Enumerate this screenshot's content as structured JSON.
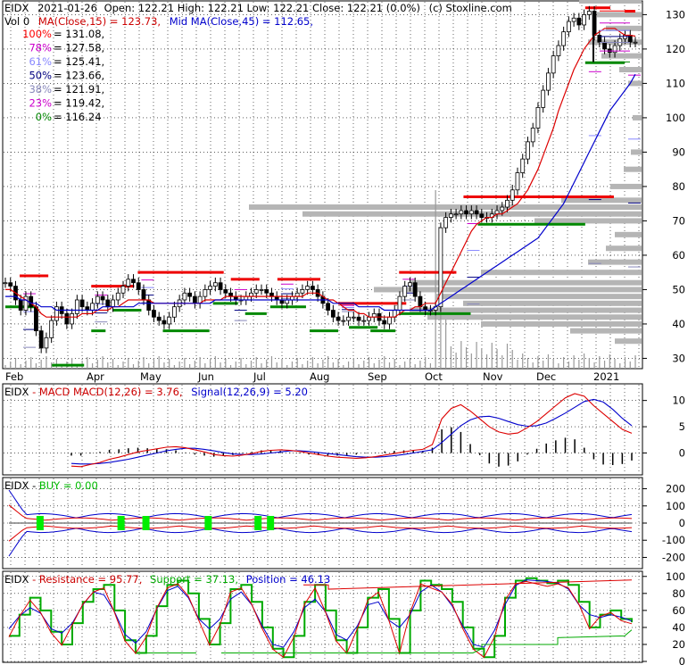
{
  "chart_data": [
    {
      "type": "candlestick",
      "header": {
        "ticker": "EIDX",
        "date": "2021-01-26",
        "ohlc_text": "Open: 122.21  High: 122.21  Low: 122.21  Close: 122.21 (0.0%)",
        "copyright": "(c) Stoxline.com",
        "vol_text": "Vol 0",
        "ma_text": "MA(Close,15) = 123.73,",
        "mid_text": "Mid MA(Close,45) = 112.65,"
      },
      "fib_levels": [
        {
          "label": "100% = 131.08,",
          "color": "#ff0000",
          "value": 131.08
        },
        {
          "label": "78% = 127.58,",
          "color": "#cc00cc",
          "value": 127.58
        },
        {
          "label": "61% = 125.41,",
          "color": "#8888ff",
          "value": 125.41
        },
        {
          "label": "50% = 123.66,",
          "color": "#000080",
          "value": 123.66
        },
        {
          "label": "38% = 121.91,",
          "color": "#8888bb",
          "value": 121.91
        },
        {
          "label": "23% = 119.42,",
          "color": "#cc00cc",
          "value": 119.42
        },
        {
          "label": "0% = 116.24",
          "color": "#008800",
          "value": 116.24
        }
      ],
      "month_labels": [
        "Feb",
        "Apr",
        "May",
        "Jun",
        "Jul",
        "Aug",
        "Sep",
        "Oct",
        "Nov",
        "Dec",
        "2021"
      ],
      "y_ticks": [
        30,
        40,
        50,
        60,
        70,
        80,
        90,
        100,
        110,
        120,
        130
      ],
      "ylim": [
        27,
        134
      ],
      "close_series": [
        52,
        51,
        47,
        44,
        48,
        45,
        38,
        33,
        36,
        41,
        45,
        43,
        40,
        43,
        47,
        45,
        44,
        46,
        48,
        47,
        45,
        47,
        49,
        51,
        53,
        52,
        50,
        47,
        44,
        42,
        41,
        40,
        42,
        45,
        47,
        49,
        48,
        46,
        48,
        50,
        51,
        52,
        50,
        49,
        48,
        47,
        47,
        48,
        49,
        50,
        50,
        49,
        48,
        47,
        46,
        47,
        48,
        49,
        50,
        51,
        50,
        48,
        46,
        44,
        42,
        41,
        41,
        42,
        42,
        41,
        41,
        42,
        43,
        41,
        40,
        42,
        44,
        48,
        51,
        52,
        48,
        45,
        44,
        44,
        45,
        68,
        71,
        72,
        72,
        73,
        72,
        73,
        72,
        71,
        71,
        72,
        73,
        74,
        76,
        79,
        84,
        88,
        93,
        97,
        103,
        108,
        113,
        118,
        121,
        125,
        128,
        129,
        127,
        130,
        131,
        124,
        122,
        120,
        119,
        121,
        123,
        124,
        122,
        122
      ],
      "ma15_series": [
        50,
        50,
        49,
        48,
        47,
        46,
        45,
        43,
        42,
        42,
        42,
        42,
        42,
        42,
        42,
        43,
        43,
        43,
        44,
        44,
        44,
        45,
        45,
        46,
        47,
        47,
        47,
        47,
        47,
        46,
        46,
        46,
        46,
        46,
        46,
        46,
        46,
        46,
        46,
        47,
        47,
        47,
        47,
        48,
        48,
        48,
        48,
        48,
        48,
        48,
        48,
        48,
        48,
        48,
        48,
        48,
        48,
        48,
        48,
        49,
        49,
        49,
        48,
        47,
        47,
        46,
        45,
        44,
        44,
        43,
        43,
        42,
        42,
        42,
        42,
        42,
        42,
        43,
        44,
        44,
        45,
        45,
        46,
        46,
        46,
        49,
        52,
        55,
        58,
        61,
        64,
        67,
        69,
        70,
        71,
        71,
        72,
        72,
        73,
        74,
        75,
        77,
        79,
        82,
        85,
        89,
        93,
        97,
        102,
        106,
        110,
        114,
        117,
        120,
        122,
        124,
        125,
        126,
        126,
        126,
        125,
        124,
        124,
        123.73
      ],
      "ma45_series": [
        48,
        48,
        48,
        47,
        47,
        46,
        46,
        45,
        45,
        45,
        44,
        44,
        44,
        44,
        44,
        44,
        44,
        44,
        44,
        45,
        45,
        45,
        45,
        45,
        45,
        45,
        46,
        46,
        46,
        46,
        46,
        46,
        46,
        46,
        46,
        46,
        46,
        46,
        46,
        46,
        46,
        47,
        47,
        47,
        47,
        47,
        47,
        47,
        47,
        47,
        47,
        47,
        47,
        47,
        47,
        47,
        47,
        47,
        47,
        47,
        47,
        47,
        47,
        47,
        46,
        46,
        46,
        46,
        46,
        45,
        45,
        45,
        45,
        45,
        44,
        44,
        44,
        44,
        44,
        44,
        44,
        44,
        44,
        44,
        45,
        46,
        47,
        48,
        49,
        50,
        51,
        52,
        53,
        54,
        55,
        56,
        57,
        58,
        59,
        60,
        61,
        62,
        63,
        64,
        65,
        67,
        69,
        71,
        73,
        75,
        78,
        81,
        84,
        87,
        90,
        93,
        96,
        99,
        102,
        104,
        106,
        108,
        110,
        112.65
      ],
      "resistance_segments": [
        {
          "from": 4,
          "to": 12,
          "value": 54
        },
        {
          "from": 24,
          "to": 36,
          "value": 51
        },
        {
          "from": 37,
          "to": 61,
          "value": 55
        },
        {
          "from": 63,
          "to": 71,
          "value": 53
        },
        {
          "from": 76,
          "to": 88,
          "value": 53
        },
        {
          "from": 93,
          "to": 112,
          "value": 46
        },
        {
          "from": 110,
          "to": 126,
          "value": 55
        },
        {
          "from": 128,
          "to": 170,
          "value": 77
        },
        {
          "from": 162,
          "to": 169,
          "value": 132
        },
        {
          "from": 173,
          "to": 176,
          "value": 131
        }
      ],
      "support_segments": [
        {
          "from": 0,
          "to": 8,
          "value": 45
        },
        {
          "from": 13,
          "to": 22,
          "value": 28
        },
        {
          "from": 24,
          "to": 28,
          "value": 38
        },
        {
          "from": 30,
          "to": 38,
          "value": 44
        },
        {
          "from": 44,
          "to": 57,
          "value": 38
        },
        {
          "from": 58,
          "to": 65,
          "value": 46
        },
        {
          "from": 67,
          "to": 73,
          "value": 43
        },
        {
          "from": 74,
          "to": 84,
          "value": 45
        },
        {
          "from": 85,
          "to": 93,
          "value": 38
        },
        {
          "from": 96,
          "to": 104,
          "value": 39
        },
        {
          "from": 102,
          "to": 109,
          "value": 38
        },
        {
          "from": 110,
          "to": 130,
          "value": 43
        },
        {
          "from": 132,
          "to": 162,
          "value": 69
        },
        {
          "from": 162,
          "to": 173,
          "value": 116
        }
      ]
    },
    {
      "type": "line",
      "header": {
        "ticker": "EIDX",
        "name_text": "MACD",
        "params_text": "MACD(12,26) = 3.76,",
        "signal_text": "Signal(12,26,9) = 5.20"
      },
      "y_ticks": [
        0,
        5,
        10
      ],
      "ylim": [
        -4,
        13
      ],
      "macd_series": [
        -2.5,
        -2.6,
        -2.2,
        -1.8,
        -1.2,
        -0.8,
        -0.3,
        0.2,
        0.5,
        0.8,
        1.1,
        1.2,
        1.0,
        0.6,
        0.2,
        -0.3,
        -0.5,
        -0.6,
        -0.4,
        -0.1,
        0.3,
        0.5,
        0.6,
        0.5,
        0.3,
        0.0,
        -0.3,
        -0.6,
        -0.8,
        -0.9,
        -1.0,
        -0.9,
        -0.7,
        -0.4,
        -0.1,
        0.2,
        0.5,
        0.7,
        1.6,
        6.5,
        8.5,
        9.2,
        8.0,
        6.5,
        5.0,
        4.0,
        3.6,
        3.8,
        4.8,
        6.0,
        7.5,
        9.0,
        10.5,
        11.3,
        10.8,
        9.0,
        7.5,
        6.0,
        4.5,
        3.76
      ],
      "signal_series": [
        -2.0,
        -2.1,
        -2.1,
        -2.0,
        -1.8,
        -1.5,
        -1.2,
        -0.8,
        -0.4,
        0.0,
        0.4,
        0.7,
        0.9,
        0.9,
        0.7,
        0.4,
        0.1,
        -0.2,
        -0.3,
        -0.3,
        -0.2,
        0.0,
        0.2,
        0.4,
        0.4,
        0.3,
        0.1,
        -0.1,
        -0.3,
        -0.5,
        -0.7,
        -0.8,
        -0.8,
        -0.7,
        -0.5,
        -0.3,
        0.0,
        0.3,
        0.6,
        2.0,
        3.6,
        5.2,
        6.3,
        6.9,
        7.0,
        6.6,
        6.0,
        5.4,
        5.1,
        5.2,
        5.7,
        6.6,
        7.6,
        8.7,
        9.8,
        10.2,
        9.7,
        8.3,
        6.6,
        5.2
      ]
    },
    {
      "type": "line",
      "header": {
        "ticker": "EIDX",
        "signal_text": "BUY = 0.00"
      },
      "y_ticks": [
        -200,
        -100,
        0,
        100,
        200
      ],
      "ylim": [
        -260,
        260
      ],
      "buy_marks": [
        5,
        18,
        22,
        32,
        40,
        42
      ]
    },
    {
      "type": "line",
      "header": {
        "ticker": "EIDX",
        "resistance_text": "Resistance = 95.77,",
        "support_text": "Support = 37.13,",
        "position_text": "Position = 46.13"
      },
      "y_ticks": [
        0,
        20,
        40,
        60,
        80,
        100
      ],
      "ylim": [
        0,
        105
      ],
      "stoch_series": [
        30,
        55,
        75,
        60,
        35,
        20,
        45,
        70,
        85,
        90,
        60,
        25,
        10,
        30,
        65,
        90,
        95,
        80,
        50,
        20,
        45,
        85,
        90,
        70,
        40,
        15,
        5,
        30,
        70,
        90,
        60,
        25,
        10,
        40,
        75,
        85,
        50,
        10,
        60,
        95,
        90,
        85,
        70,
        40,
        15,
        5,
        30,
        75,
        95,
        98,
        95,
        92,
        95,
        90,
        70,
        40,
        55,
        60,
        50,
        46.13
      ],
      "resistance_line": 95.77,
      "support_line": 37.13
    }
  ]
}
